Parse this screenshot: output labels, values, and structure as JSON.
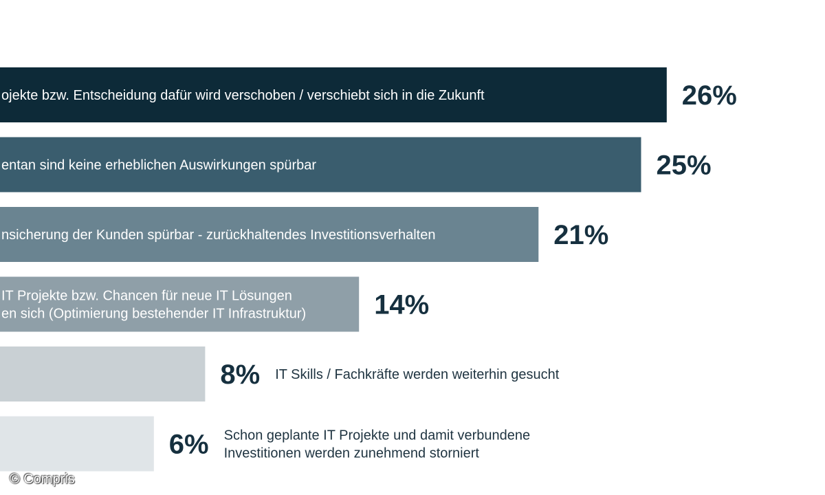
{
  "chart_data": {
    "type": "bar",
    "orientation": "horizontal",
    "categories": [
      [
        "ojekte bzw. Entscheidung dafür wird verschoben / verschiebt sich in die Zukunft"
      ],
      [
        "entan sind keine erheblichen Auswirkungen spürbar"
      ],
      [
        "nsicherung der Kunden spürbar - zurückhaltendes Investitionsverhalten"
      ],
      [
        "IT Projekte bzw. Chancen für neue IT Lösungen",
        "en sich (Optimierung bestehender IT Infrastruktur)"
      ],
      [
        "IT Skills / Fachkräfte werden weiterhin gesucht"
      ],
      [
        "Schon geplante IT Projekte  und damit verbundene",
        "Investitionen werden zunehmend storniert"
      ]
    ],
    "values": [
      26,
      25,
      21,
      14,
      8,
      6
    ],
    "value_labels": [
      "26%",
      "25%",
      "21%",
      "14%",
      "8%",
      "6%"
    ],
    "label_position": [
      "inside",
      "inside",
      "inside",
      "inside",
      "right-of-value",
      "right-of-value"
    ],
    "colors": [
      "#0d2a38",
      "#3a5d6e",
      "#6a8491",
      "#8f9fa8",
      "#c9d0d4",
      "#e0e5e8"
    ],
    "unit": "%"
  },
  "credit": "© Compris"
}
